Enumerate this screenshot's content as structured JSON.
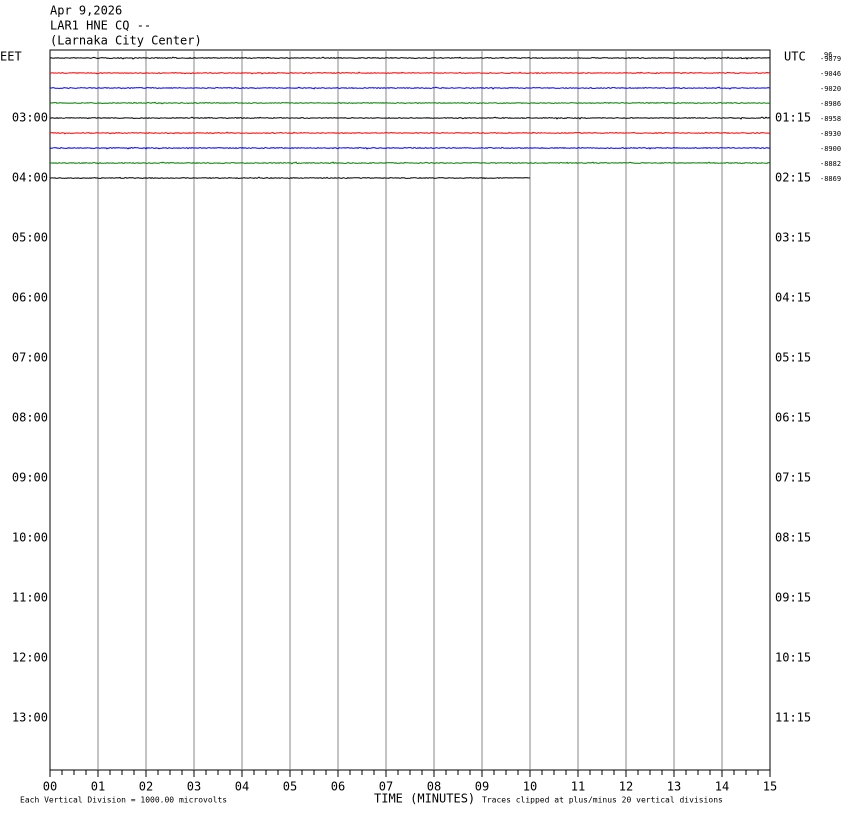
{
  "header": {
    "date": "Apr 9,2026",
    "station": "LAR1 HNE CQ --",
    "location": "(Larnaka City Center)"
  },
  "left_title": "EET",
  "right_title": "UTC",
  "left_labels": [
    "03:00",
    "04:00",
    "05:00",
    "06:00",
    "07:00",
    "08:00",
    "09:00",
    "10:00",
    "11:00",
    "12:00",
    "13:00"
  ],
  "right_labels": [
    "01:15",
    "02:15",
    "03:15",
    "04:15",
    "05:15",
    "06:15",
    "07:15",
    "08:15",
    "09:15",
    "10:15",
    "11:15"
  ],
  "scale_note": "96",
  "offsets": [
    "-9079",
    "-9046",
    "-9020",
    "-8986",
    "-8958",
    "-8930",
    "-8900",
    "-8882",
    "-8869"
  ],
  "minute_labels": [
    "00",
    "01",
    "02",
    "03",
    "04",
    "05",
    "06",
    "07",
    "08",
    "09",
    "10",
    "11",
    "12",
    "13",
    "14",
    "15"
  ],
  "traces": [
    {
      "color": "#000000",
      "minutes": 15
    },
    {
      "color": "#ff0000",
      "minutes": 15
    },
    {
      "color": "#0000ff",
      "minutes": 15
    },
    {
      "color": "#008000",
      "minutes": 15
    },
    {
      "color": "#000000",
      "minutes": 15
    },
    {
      "color": "#ff0000",
      "minutes": 15
    },
    {
      "color": "#0000ff",
      "minutes": 15
    },
    {
      "color": "#008000",
      "minutes": 15
    },
    {
      "color": "#000000",
      "minutes": 10
    }
  ],
  "footer": {
    "division": "Each Vertical Division = 1000.00 microvolts",
    "axis_title": "TIME (MINUTES)",
    "clip_note": "Traces clipped at plus/minus 20 vertical divisions"
  }
}
